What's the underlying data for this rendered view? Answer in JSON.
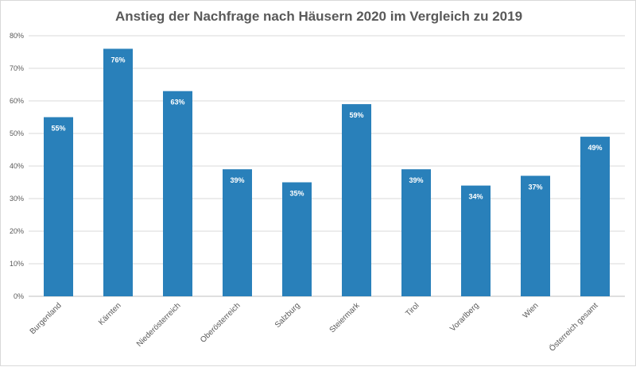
{
  "chart_data": {
    "type": "bar",
    "title": "Anstieg der Nachfrage nach Häusern 2020 im Vergleich zu 2019",
    "categories": [
      "Burgenland",
      "Kärnten",
      "Niederösterreich",
      "Oberösterreich",
      "Salzburg",
      "Steiermark",
      "Tirol",
      "Vorarlberg",
      "Wien",
      "Österreich gesamt"
    ],
    "values": [
      55,
      76,
      63,
      39,
      35,
      59,
      39,
      34,
      37,
      49
    ],
    "data_labels": [
      "55%",
      "76%",
      "63%",
      "39%",
      "35%",
      "59%",
      "39%",
      "34%",
      "37%",
      "49%"
    ],
    "yticks": [
      0,
      10,
      20,
      30,
      40,
      50,
      60,
      70,
      80
    ],
    "ytick_labels": [
      "0%",
      "10%",
      "20%",
      "30%",
      "40%",
      "50%",
      "60%",
      "70%",
      "80%"
    ],
    "ylim": [
      0,
      80
    ],
    "xlabel": "",
    "ylabel": "",
    "grid": true,
    "legend": "none",
    "bar_color": "#2980ba"
  }
}
